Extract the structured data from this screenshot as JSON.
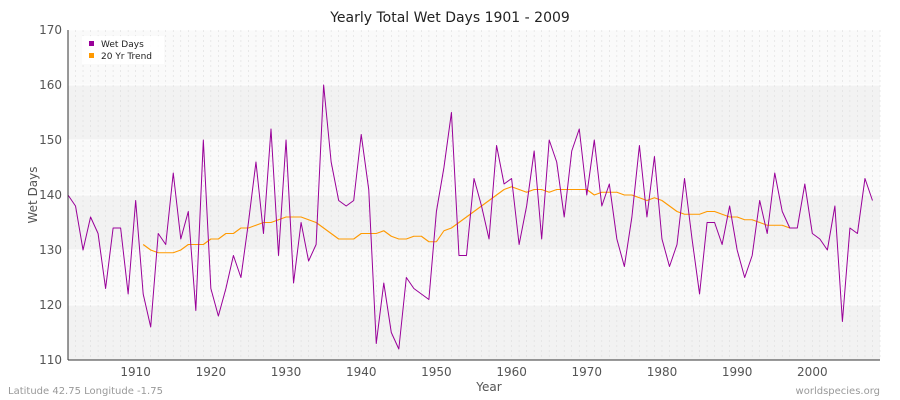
{
  "chart_data": {
    "type": "line",
    "title": "Yearly Total Wet Days 1901 - 2009",
    "xlabel": "Year",
    "ylabel": "Wet Days",
    "xlim": [
      1901,
      2009
    ],
    "ylim": [
      110,
      170
    ],
    "x_ticks": [
      1910,
      1920,
      1930,
      1940,
      1950,
      1960,
      1970,
      1980,
      1990,
      2000
    ],
    "y_ticks": [
      110,
      120,
      130,
      140,
      150,
      160,
      170
    ],
    "grid": true,
    "legend_position": "top-left",
    "series": [
      {
        "name": "Wet Days",
        "color": "#990099",
        "x_start": 1901,
        "values": [
          140,
          138,
          130,
          136,
          133,
          123,
          134,
          134,
          122,
          139,
          122,
          116,
          133,
          131,
          144,
          132,
          137,
          119,
          150,
          123,
          118,
          123,
          129,
          125,
          135,
          146,
          133,
          152,
          129,
          150,
          124,
          135,
          128,
          131,
          160,
          146,
          139,
          138,
          139,
          151,
          141,
          113,
          124,
          115,
          112,
          125,
          123,
          122,
          121,
          137,
          145,
          155,
          129,
          129,
          143,
          138,
          132,
          149,
          142,
          143,
          131,
          138,
          148,
          132,
          150,
          146,
          136,
          148,
          152,
          140,
          150,
          138,
          142,
          132,
          127,
          136,
          149,
          136,
          147,
          132,
          127,
          131,
          143,
          132,
          122,
          135,
          135,
          131,
          138,
          130,
          125,
          129,
          139,
          133,
          144,
          137,
          134,
          134,
          142,
          133,
          132,
          130,
          138,
          117,
          134,
          133,
          143,
          139
        ]
      },
      {
        "name": "20 Yr Trend",
        "color": "#ff9900",
        "x_start": 1911,
        "values": [
          131,
          130,
          129.5,
          129.5,
          129.5,
          130,
          131,
          131,
          131,
          132,
          132,
          133,
          133,
          134,
          134,
          134.5,
          135,
          135,
          135.5,
          136,
          136,
          136,
          135.5,
          135,
          134,
          133,
          132,
          132,
          132,
          133,
          133,
          133,
          133.5,
          132.5,
          132,
          132,
          132.5,
          132.5,
          131.5,
          131.5,
          133.5,
          134,
          135,
          136,
          137,
          138,
          139,
          140,
          141,
          141.5,
          141,
          140.5,
          141,
          141,
          140.5,
          141,
          141,
          141,
          141,
          141,
          140,
          140.5,
          140.5,
          140.5,
          140,
          140,
          139.5,
          139,
          139.5,
          139,
          138,
          137,
          136.5,
          136.5,
          136.5,
          137,
          137,
          136.5,
          136,
          136,
          135.5,
          135.5,
          135,
          134.5,
          134.5,
          134.5,
          134,
          134
        ]
      }
    ],
    "footer_left": "Latitude 42.75 Longitude -1.75",
    "footer_right": "worldspecies.org"
  }
}
